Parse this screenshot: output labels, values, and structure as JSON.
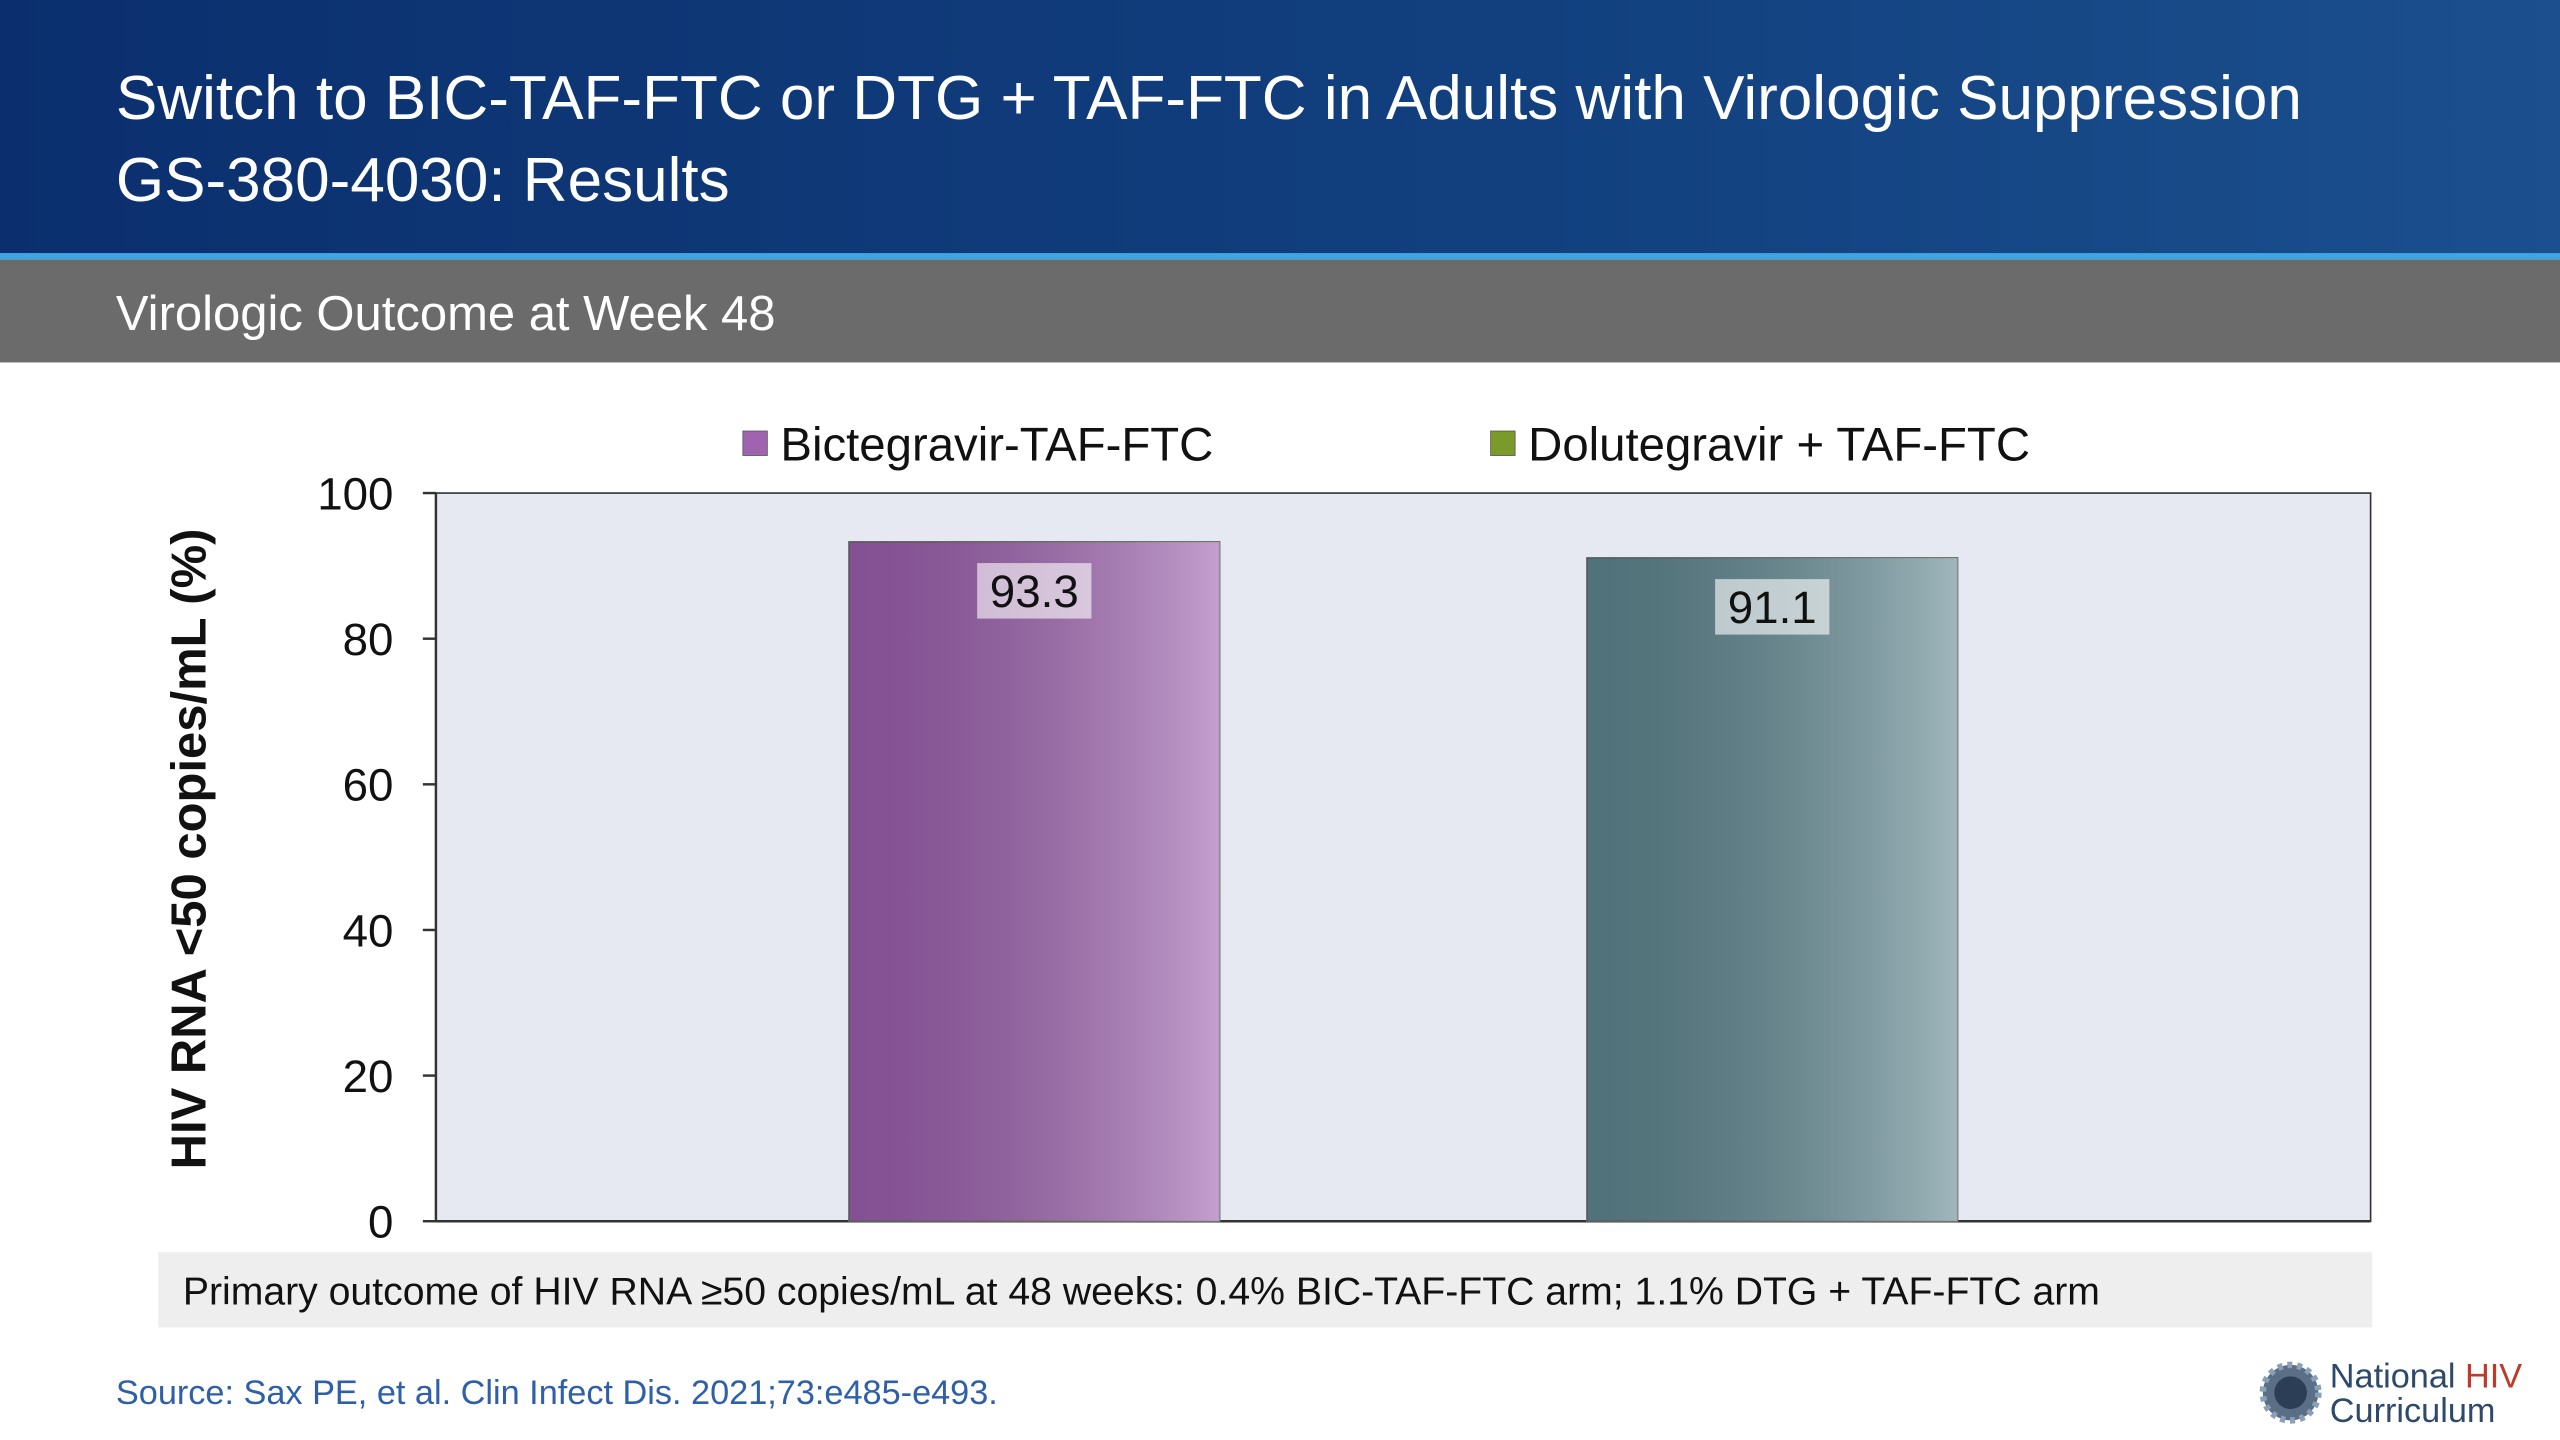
{
  "header": {
    "title": [
      "Switch to BIC-TAF-FTC or DTG + TAF-FTC in Adults with Virologic Suppression",
      "GS-380-4030: Results"
    ],
    "subtitle": "Virologic Outcome at Week 48"
  },
  "chart_data": {
    "type": "bar",
    "y_label": "HIV RNA <50 copies/mL (%)",
    "categories": [
      null
    ],
    "series": [
      {
        "name": "Bictegravir-TAF-FTC",
        "color": "#9c5fae",
        "legend_color": "#a063b0",
        "values": [
          93.3
        ]
      },
      {
        "name": "Dolutegravir + TAF-FTC",
        "color": "#5e8690",
        "legend_color": "#7a9a2a",
        "values": [
          91.1
        ]
      }
    ],
    "ylim": [
      0,
      100
    ],
    "yticks": [
      0,
      20,
      40,
      60,
      80,
      100
    ],
    "legend": "top"
  },
  "footnote": "Primary outcome of HIV RNA ≥50 copies/mL at 48 weeks: 0.4% BIC-TAF-FTC arm; 1.1% DTG + TAF-FTC arm",
  "source": "Source: Sax PE, et al. Clin Infect Dis. 2021;73:e485-e493.",
  "logo": {
    "line1": "National",
    "line1b": "HIV",
    "line2": "Curriculum"
  }
}
